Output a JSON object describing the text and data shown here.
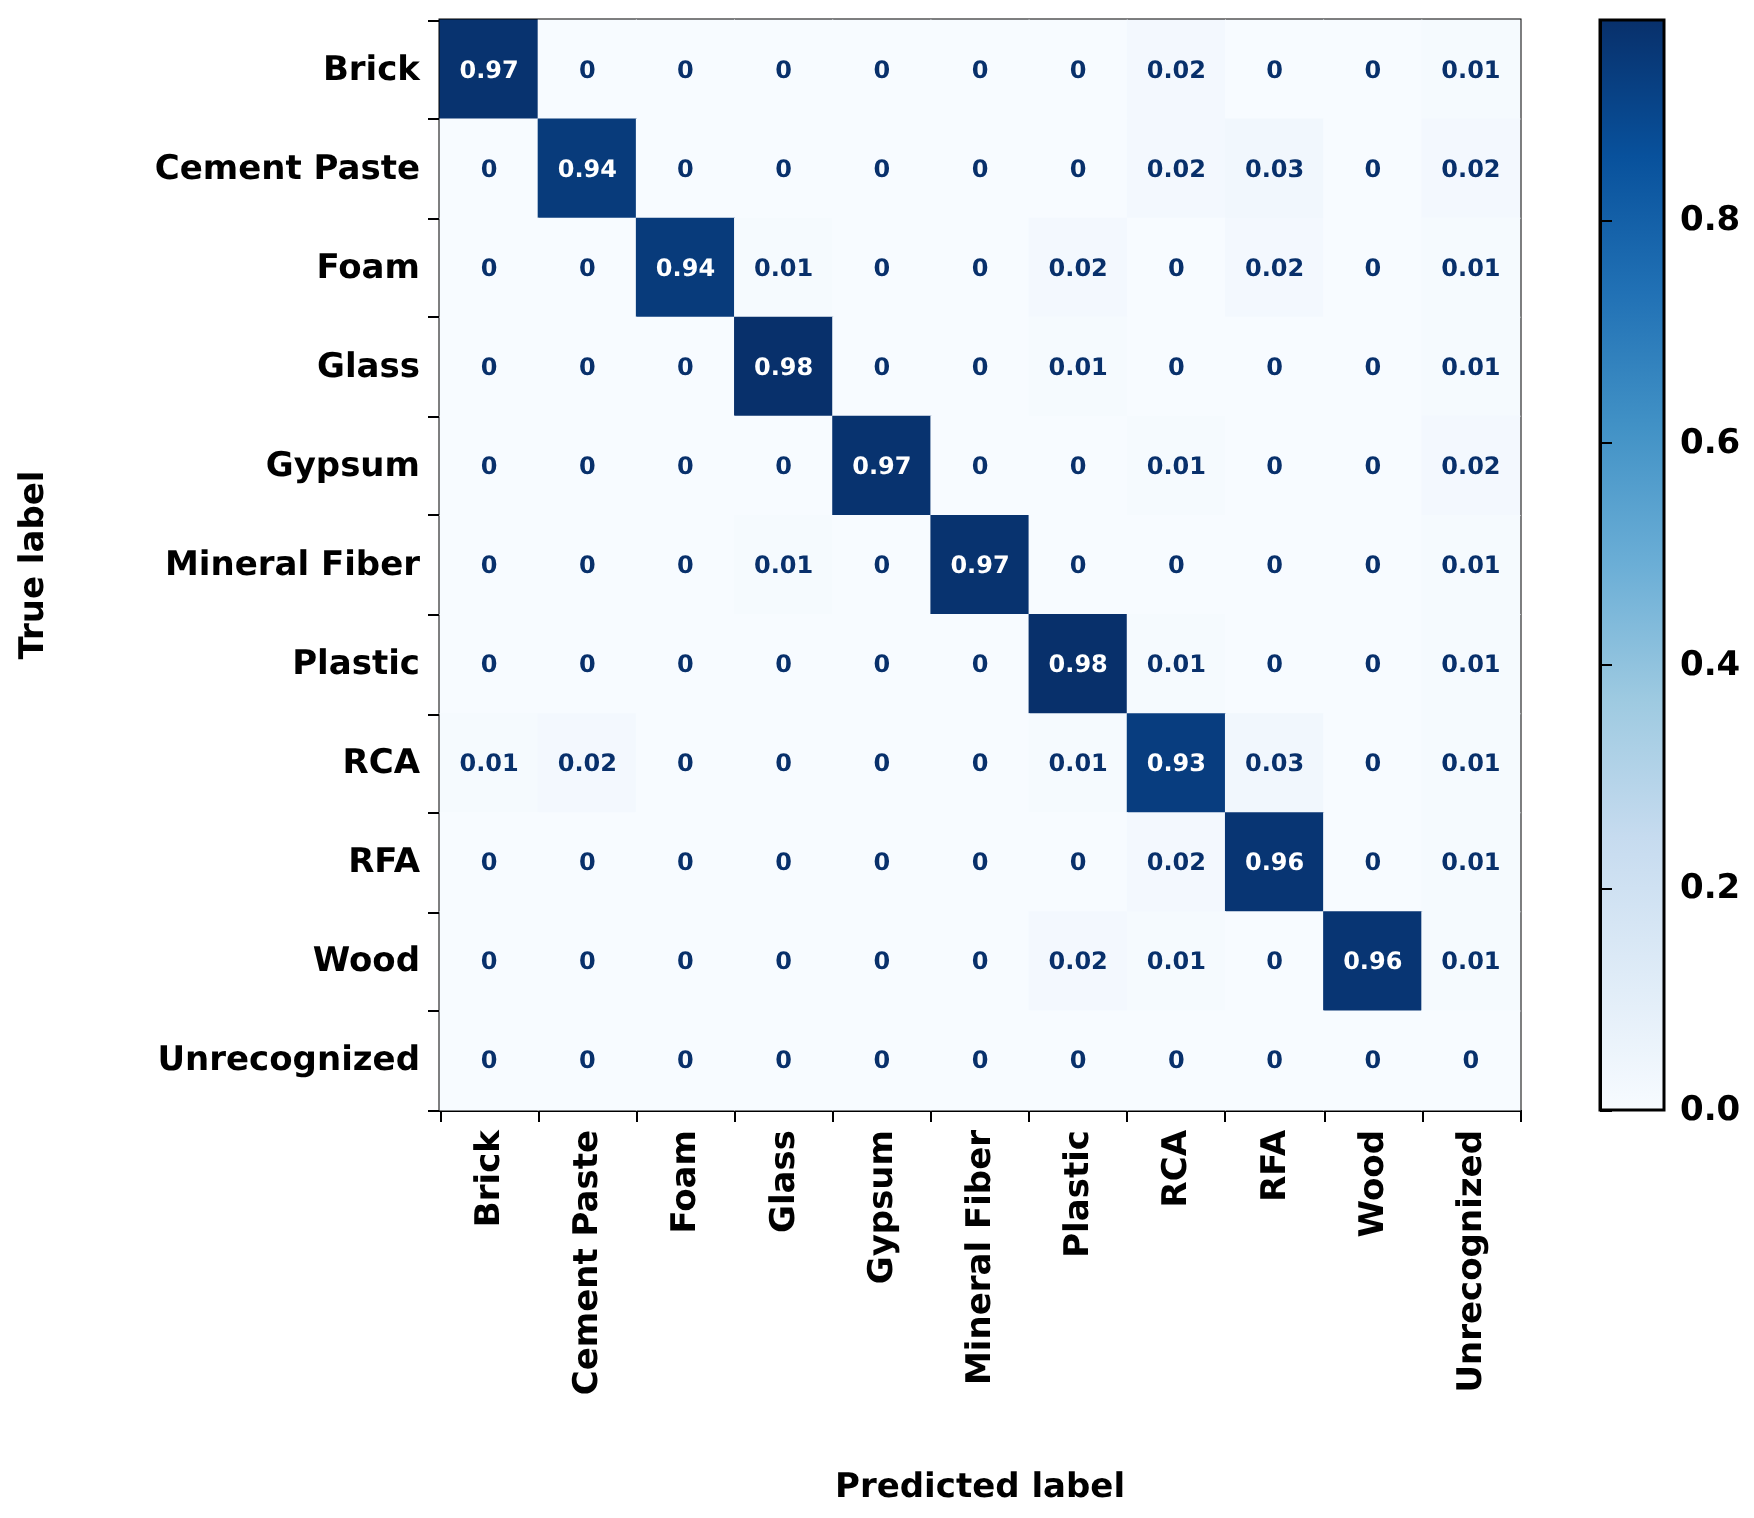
{
  "chart_data": {
    "type": "heatmap",
    "xlabel": "Predicted label",
    "ylabel": "True label",
    "categories": [
      "Brick",
      "Cement Paste",
      "Foam",
      "Glass",
      "Gypsum",
      "Mineral Fiber",
      "Plastic",
      "RCA",
      "RFA",
      "Wood",
      "Unrecognized"
    ],
    "y_categories": [
      "Brick",
      "Cement Paste",
      "Foam",
      "Glass",
      "Gypsum",
      "Mineral Fiber",
      "Plastic",
      "RCA",
      "RFA",
      "Wood",
      "Unrecognized"
    ],
    "cells": [
      [
        0.97,
        0,
        0,
        0,
        0,
        0,
        0,
        0.02,
        0,
        0,
        0.01
      ],
      [
        0,
        0.94,
        0,
        0,
        0,
        0,
        0,
        0.02,
        0.03,
        0,
        0.02
      ],
      [
        0,
        0,
        0.94,
        0.01,
        0,
        0,
        0.02,
        0,
        0.02,
        0,
        0.01
      ],
      [
        0,
        0,
        0,
        0.98,
        0,
        0,
        0.01,
        0,
        0,
        0,
        0.01
      ],
      [
        0,
        0,
        0,
        0,
        0.97,
        0,
        0,
        0.01,
        0,
        0,
        0.02
      ],
      [
        0,
        0,
        0,
        0.01,
        0,
        0.97,
        0,
        0,
        0,
        0,
        0.01
      ],
      [
        0,
        0,
        0,
        0,
        0,
        0,
        0.98,
        0.01,
        0,
        0,
        0.01
      ],
      [
        0.01,
        0.02,
        0,
        0,
        0,
        0,
        0.01,
        0.93,
        0.03,
        0,
        0.01
      ],
      [
        0,
        0,
        0,
        0,
        0,
        0,
        0,
        0.02,
        0.96,
        0,
        0.01
      ],
      [
        0,
        0,
        0,
        0,
        0,
        0,
        0.02,
        0.01,
        0,
        0.96,
        0.01
      ],
      [
        0,
        0,
        0,
        0,
        0,
        0,
        0,
        0,
        0,
        0,
        0
      ]
    ],
    "data_labels": true,
    "clim": [
      0,
      0.98
    ],
    "cticks": [
      {
        "value": 0,
        "label": "0.0"
      },
      0.2,
      0.4,
      0.6,
      0.8
    ]
  }
}
